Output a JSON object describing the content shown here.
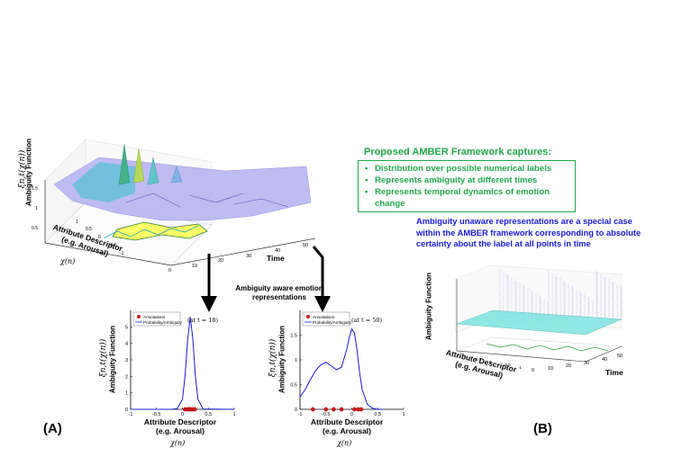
{
  "framework": {
    "title": "Proposed AMBER Framework captures:",
    "bullets": [
      "Distribution over possible numerical labels",
      "Represents ambiguity at different times",
      "Represents temporal dynamics of emotion change"
    ],
    "unaware_note": "Ambiguity unaware representations are a special case within the AMBER framework corresponding to absolute certainty about the label at all points in time"
  },
  "panel_a": {
    "label": "(A)",
    "surface": {
      "zlabel": "Ambiguity Function",
      "zsymbol": "ξn,t(χ(n))",
      "xlabel": "Time",
      "ylabel_line1": "Attribute Descriptor",
      "ylabel_line2": "(e.g. Arousal)",
      "ysymbol": "χ(n)",
      "xticks": [
        "0",
        "10",
        "20",
        "30",
        "40",
        "50"
      ],
      "yticks": [
        "1",
        "0.5",
        "0",
        "-0.5",
        "-1"
      ],
      "zticks": [
        "0.5",
        "1",
        "1.5"
      ]
    },
    "arrow_caption_line1": "Ambiguity aware emotion",
    "arrow_caption_line2": "representations"
  },
  "panel_b": {
    "label": "(B)",
    "zlabel": "Ambiguity Function",
    "xlabel": "Time",
    "ylabel_line1": "Attribute Descriptor",
    "ylabel_line2": "(e.g. Arousal)",
    "xticks": [
      "0",
      "10",
      "20",
      "30",
      "40",
      "50"
    ],
    "yticks": [
      "1",
      "0.5",
      "0",
      "-0.5",
      "-1"
    ]
  },
  "plot_t18": {
    "time_note": "(at t = 18)",
    "ylabel": "Ambiguity Function",
    "ysymbol": "ξn,t(χ(n))",
    "xlabel_line1": "Attribute Descriptor",
    "xlabel_line2": "(e.g. Arousal)",
    "xsymbol": "χ(n)",
    "legend": [
      "Annotations",
      "Probability/Ambiguity"
    ]
  },
  "plot_t50": {
    "time_note": "(at t = 50)",
    "ylabel": "Ambiguity Function",
    "ysymbol": "ξn,t(χ(n))",
    "xlabel_line1": "Attribute Descriptor",
    "xlabel_line2": "(e.g. Arousal)",
    "xsymbol": "χ(n)",
    "legend": [
      "Annotations",
      "Probability/Ambiguity"
    ]
  },
  "chart_data": [
    {
      "type": "line",
      "xlim": [
        -1,
        1
      ],
      "ylim": [
        0,
        6
      ],
      "xticks": [
        "-1",
        "-0.5",
        "0",
        "0.5",
        "1"
      ],
      "yticks": [
        "0",
        "1",
        "2",
        "3",
        "4",
        "5"
      ],
      "series": [
        {
          "name": "Annotations",
          "x": [
            0.05,
            0.1,
            0.13,
            0.16,
            0.2,
            0.24
          ],
          "y": [
            0,
            0,
            0,
            0,
            0,
            0
          ]
        },
        {
          "name": "Probability/Ambiguity",
          "x": [
            -1,
            -0.2,
            -0.1,
            0,
            0.05,
            0.1,
            0.15,
            0.2,
            0.25,
            0.3,
            0.4,
            1
          ],
          "y": [
            0,
            0,
            0.05,
            0.6,
            2.0,
            4.2,
            5.6,
            4.3,
            2.0,
            0.6,
            0.02,
            0
          ]
        }
      ]
    },
    {
      "type": "line",
      "xlim": [
        -1,
        1
      ],
      "ylim": [
        0,
        2
      ],
      "xticks": [
        "-1",
        "-0.5",
        "0",
        "0.5",
        "1"
      ],
      "yticks": [
        "0",
        "0.5",
        "1",
        "1.5"
      ],
      "series": [
        {
          "name": "Annotations",
          "x": [
            -0.75,
            -0.5,
            -0.35,
            -0.2,
            0.05,
            0.12,
            0.18
          ],
          "y": [
            0,
            0,
            0,
            0,
            0,
            0,
            0
          ]
        },
        {
          "name": "Probability/Ambiguity",
          "x": [
            -1,
            -0.9,
            -0.8,
            -0.7,
            -0.6,
            -0.5,
            -0.4,
            -0.3,
            -0.2,
            -0.1,
            -0.05,
            0,
            0.05,
            0.1,
            0.15,
            0.2,
            0.3,
            0.4,
            0.5,
            0.6
          ],
          "y": [
            0.25,
            0.4,
            0.6,
            0.78,
            0.9,
            0.95,
            0.88,
            0.8,
            0.85,
            1.2,
            1.45,
            1.62,
            1.55,
            1.2,
            0.75,
            0.4,
            0.1,
            0.02,
            0,
            0
          ]
        }
      ]
    }
  ]
}
